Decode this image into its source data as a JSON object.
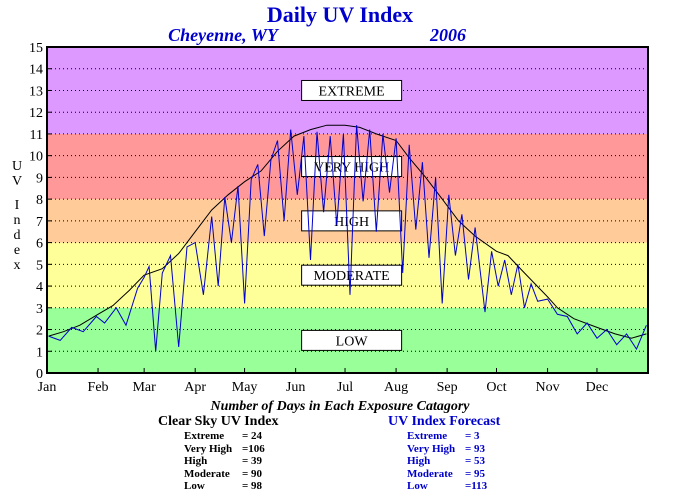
{
  "chart_data": {
    "type": "line",
    "title": "Daily UV Index",
    "location": "Cheyenne, WY",
    "year": "2006",
    "ylabel": "UV Index",
    "ylim": [
      0,
      15
    ],
    "yticks": [
      "0",
      "1",
      "2",
      "3",
      "4",
      "5",
      "6",
      "7",
      "8",
      "9",
      "10",
      "11",
      "12",
      "13",
      "14",
      "15"
    ],
    "xlim": [
      0,
      365
    ],
    "xtick_labels": [
      "Jan",
      "Feb",
      "Mar",
      "Apr",
      "May",
      "Jun",
      "Jul",
      "Aug",
      "Sep",
      "Oct",
      "Nov",
      "Dec"
    ],
    "grid": "dotted horizontal",
    "categories": [
      {
        "name": "LOW",
        "range": [
          0,
          3
        ],
        "color": "#99ff99"
      },
      {
        "name": "MODERATE",
        "range": [
          3,
          6
        ],
        "color": "#ffff99"
      },
      {
        "name": "HIGH",
        "range": [
          6,
          8
        ],
        "color": "#ffcc99"
      },
      {
        "name": "VERY HIGH",
        "range": [
          8,
          11
        ],
        "color": "#ff9999"
      },
      {
        "name": "EXTREME",
        "range": [
          11,
          15
        ],
        "color": "#dd99ff"
      }
    ],
    "series": [
      {
        "color": "#000000",
        "x": [
          1,
          10,
          20,
          31,
          40,
          50,
          59,
          70,
          80,
          90,
          100,
          110,
          120,
          130,
          140,
          150,
          160,
          170,
          181,
          190,
          200,
          212,
          220,
          230,
          240,
          250,
          260,
          273,
          280,
          290,
          304,
          310,
          320,
          334,
          345,
          355,
          364
        ],
        "y": [
          1.7,
          1.9,
          2.2,
          2.7,
          3.1,
          3.8,
          4.5,
          4.8,
          5.5,
          6.5,
          7.5,
          8.2,
          8.8,
          9.3,
          10.2,
          10.9,
          11.2,
          11.4,
          11.4,
          11.3,
          11.0,
          10.7,
          9.9,
          9.0,
          8.0,
          7.0,
          6.3,
          5.6,
          5.4,
          4.6,
          3.5,
          3.0,
          2.5,
          2.1,
          1.8,
          1.6,
          1.8
        ]
      },
      {
        "color": "#0000cc",
        "x": [
          1,
          8,
          15,
          22,
          30,
          35,
          42,
          48,
          55,
          59,
          62,
          66,
          70,
          75,
          80,
          85,
          90,
          95,
          100,
          104,
          108,
          112,
          116,
          120,
          124,
          128,
          132,
          136,
          140,
          144,
          148,
          152,
          156,
          160,
          164,
          168,
          172,
          176,
          180,
          184,
          188,
          192,
          196,
          200,
          204,
          208,
          212,
          216,
          220,
          224,
          228,
          232,
          236,
          240,
          244,
          248,
          252,
          256,
          260,
          266,
          270,
          274,
          278,
          282,
          286,
          290,
          294,
          298,
          304,
          310,
          316,
          322,
          328,
          334,
          340,
          346,
          352,
          358,
          364
        ],
        "y": [
          1.7,
          1.5,
          2.1,
          1.9,
          2.6,
          2.3,
          3.0,
          2.2,
          3.9,
          4.4,
          4.9,
          1.0,
          4.6,
          5.4,
          1.2,
          5.8,
          6.0,
          3.6,
          7.2,
          4.0,
          8.1,
          6.0,
          8.6,
          3.2,
          8.9,
          9.6,
          6.3,
          9.8,
          10.7,
          7.0,
          11.2,
          8.2,
          10.9,
          5.2,
          11.1,
          7.4,
          10.9,
          6.8,
          11.0,
          3.6,
          11.4,
          7.9,
          11.2,
          6.5,
          11.0,
          8.3,
          10.8,
          4.6,
          10.5,
          6.6,
          9.7,
          5.3,
          9.0,
          3.2,
          8.2,
          5.4,
          7.3,
          4.3,
          6.7,
          2.8,
          5.6,
          4.0,
          5.2,
          3.6,
          5.0,
          3.0,
          4.1,
          3.3,
          3.4,
          2.7,
          2.6,
          1.8,
          2.3,
          1.6,
          2.0,
          1.3,
          1.8,
          1.1,
          2.2
        ]
      }
    ]
  },
  "summary": {
    "subtitle": "Number of Days in Each Exposure Catagory",
    "clear_sky": {
      "title": "Clear Sky UV Index",
      "rows": [
        {
          "label": "Extreme",
          "value": "= 24"
        },
        {
          "label": "Very High",
          "value": "=106"
        },
        {
          "label": "High",
          "value": "= 39"
        },
        {
          "label": "Moderate",
          "value": "= 90"
        },
        {
          "label": "Low",
          "value": "= 98"
        }
      ]
    },
    "forecast": {
      "title": "UV Index Forecast",
      "rows": [
        {
          "label": "Extreme",
          "value": "= 3"
        },
        {
          "label": "Very High",
          "value": "= 93"
        },
        {
          "label": "High",
          "value": "= 53"
        },
        {
          "label": "Moderate",
          "value": "= 95"
        },
        {
          "label": "Low",
          "value": "=113"
        }
      ]
    }
  }
}
